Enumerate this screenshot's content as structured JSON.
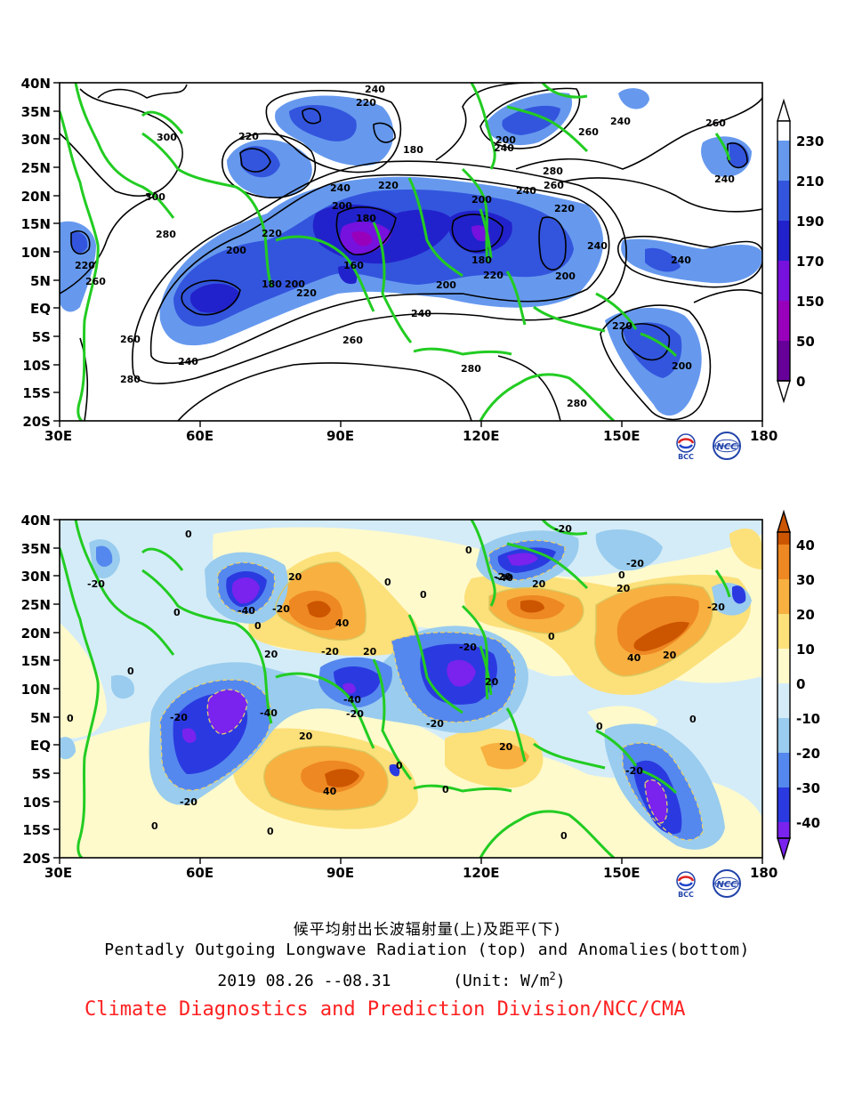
{
  "top_map": {
    "x_tick_labels": [
      "30E",
      "60E",
      "90E",
      "120E",
      "150E",
      "180"
    ],
    "y_tick_labels": [
      "40N",
      "35N",
      "30N",
      "25N",
      "20N",
      "15N",
      "10N",
      "5N",
      "EQ",
      "5S",
      "10S",
      "15S",
      "20S"
    ],
    "colorbar": {
      "labels": [
        "230",
        "210",
        "190",
        "170",
        "150",
        "50",
        "0"
      ],
      "colors": [
        "#6699ee",
        "#3355dd",
        "#2222cc",
        "#7711dd",
        "#9900bb",
        "#660099",
        "#440033"
      ]
    },
    "contour_labels": [
      "300",
      "300",
      "280",
      "280",
      "280",
      "280",
      "280",
      "260",
      "260",
      "260",
      "260",
      "260",
      "260",
      "240",
      "240",
      "240",
      "240",
      "240",
      "240",
      "240",
      "240",
      "240",
      "240",
      "220",
      "220",
      "220",
      "220",
      "220",
      "220",
      "220",
      "220",
      "220",
      "200",
      "200",
      "200",
      "200",
      "200",
      "200",
      "200",
      "200",
      "180",
      "180",
      "180",
      "180",
      "160"
    ],
    "land_color": "#22cc22"
  },
  "bottom_map": {
    "x_tick_labels": [
      "30E",
      "60E",
      "90E",
      "120E",
      "150E",
      "180"
    ],
    "y_tick_labels": [
      "40N",
      "35N",
      "30N",
      "25N",
      "20N",
      "15N",
      "10N",
      "5N",
      "EQ",
      "5S",
      "10S",
      "15S",
      "20S"
    ],
    "colorbar": {
      "labels": [
        "40",
        "30",
        "20",
        "10",
        "0",
        "-10",
        "-20",
        "-30",
        "-40"
      ],
      "colors": [
        "#cc5500",
        "#ee8822",
        "#f8b040",
        "#fce07a",
        "#fffacc",
        "#d4ecf8",
        "#99ccee",
        "#5588ee",
        "#2a3ae0",
        "#7a22ee"
      ]
    },
    "contour_labels": [
      "-20",
      "-20",
      "-20",
      "-20",
      "-20",
      "-20",
      "-20",
      "-20",
      "-20",
      "-20",
      "-20",
      "-20",
      "-20",
      "-40",
      "-40",
      "-40",
      "-40",
      "0",
      "0",
      "0",
      "0",
      "0",
      "0",
      "0",
      "0",
      "0",
      "0",
      "0",
      "0",
      "0",
      "0",
      "0",
      "20",
      "20",
      "20",
      "20",
      "20",
      "20",
      "20",
      "20",
      "20",
      "40",
      "40",
      "40",
      "0",
      "0"
    ],
    "land_color": "#22cc22"
  },
  "logos": {
    "left": "BCC",
    "right": "NCC"
  },
  "titles": {
    "cn": "候平均射出长波辐射量(上)及距平(下)",
    "en": "Pentadly Outgoing Longwave Radiation (top) and Anomalies(bottom)",
    "date": "2019  08.26 --08.31",
    "unit_prefix": "(Unit: W/m",
    "unit_exp": "2",
    "unit_suffix": ")",
    "org": "Climate Diagnostics and Prediction Division/NCC/CMA"
  }
}
